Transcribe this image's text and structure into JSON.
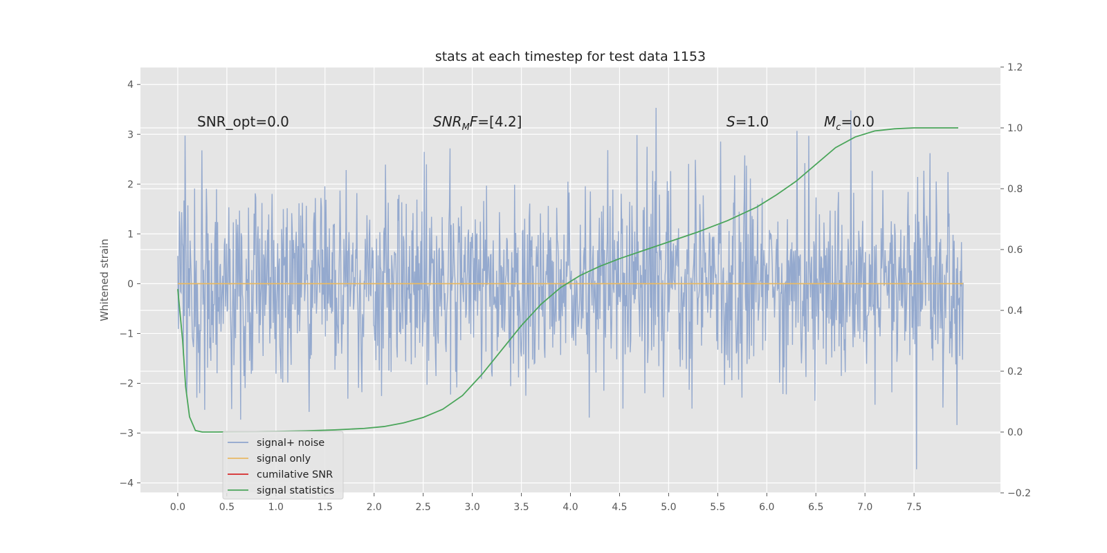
{
  "chart_data": {
    "type": "line",
    "title": "stats at each timestep for test data 1153",
    "xlabel": "",
    "ylabel": "Whitened strain",
    "xlim": [
      -0.38,
      8.38
    ],
    "ylim": [
      -4.2,
      4.35
    ],
    "y2lim": [
      -0.2,
      1.2
    ],
    "xticks": [
      "0.0",
      "0.5",
      "1.0",
      "1.5",
      "2.0",
      "2.5",
      "3.0",
      "3.5",
      "4.0",
      "4.5",
      "5.0",
      "5.5",
      "6.0",
      "6.5",
      "7.0",
      "7.5"
    ],
    "yticks": [
      "−4",
      "−3",
      "−2",
      "−1",
      "0",
      "1",
      "2",
      "3",
      "4"
    ],
    "y2ticks": [
      "−0.2",
      "0.0",
      "0.2",
      "0.4",
      "0.6",
      "0.8",
      "1.0",
      "1.2"
    ],
    "grid": true,
    "legend_position": "lower-left",
    "annotations": {
      "snr_opt": "SNR_opt=0.0",
      "snr_mf_main": "SNR",
      "snr_mf_sub": "M",
      "snr_mf_it": "F",
      "snr_mf_val": "=[4.2]",
      "s_it": "S",
      "s_val": "=1.0",
      "mc_main": "M",
      "mc_sub": "c",
      "mc_val": "=0.0"
    },
    "series": [
      {
        "name": "signal+ noise",
        "color": "#8fa5cc",
        "axis": "left",
        "x_range": [
          0.0,
          8.0
        ],
        "n_points": 1400,
        "seed": 1153,
        "envelope_std": 1.0
      },
      {
        "name": "signal only",
        "color": "#e8b963",
        "axis": "left",
        "x": [
          0.0,
          8.0
        ],
        "y": [
          0.0,
          0.0
        ]
      },
      {
        "name": "cumilative SNR",
        "color": "#d62728",
        "axis": "left",
        "x": [],
        "y": []
      },
      {
        "name": "signal statistics",
        "color": "#4aa55a",
        "axis": "right",
        "x": [
          0.0,
          0.05,
          0.08,
          0.12,
          0.18,
          0.25,
          0.4,
          0.7,
          1.0,
          1.3,
          1.6,
          1.9,
          2.1,
          2.3,
          2.5,
          2.7,
          2.9,
          3.1,
          3.3,
          3.5,
          3.7,
          3.9,
          4.1,
          4.3,
          4.5,
          4.7,
          5.0,
          5.3,
          5.6,
          5.9,
          6.1,
          6.3,
          6.5,
          6.7,
          6.9,
          7.1,
          7.3,
          7.5,
          7.7,
          7.95
        ],
        "y": [
          0.47,
          0.3,
          0.15,
          0.05,
          0.005,
          0.0,
          0.0,
          0.001,
          0.002,
          0.004,
          0.007,
          0.012,
          0.018,
          0.03,
          0.048,
          0.075,
          0.12,
          0.19,
          0.27,
          0.35,
          0.42,
          0.475,
          0.515,
          0.545,
          0.57,
          0.592,
          0.625,
          0.658,
          0.695,
          0.74,
          0.78,
          0.825,
          0.88,
          0.935,
          0.97,
          0.99,
          0.997,
          1.0,
          1.0,
          1.0
        ]
      }
    ]
  }
}
